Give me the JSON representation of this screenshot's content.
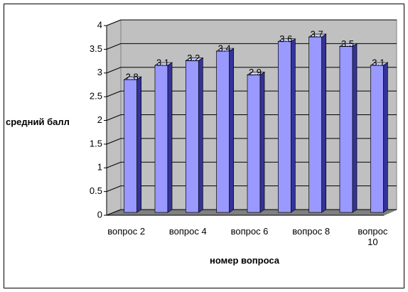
{
  "chart_data": {
    "type": "bar",
    "x_label": "номер вопроса",
    "y_label": "средний балл",
    "categories": [
      "вопрос 2",
      null,
      "вопрос 4",
      null,
      "вопрос 6",
      null,
      "вопрос 8",
      null,
      "вопрос 10"
    ],
    "values": [
      2.8,
      3.1,
      3.2,
      3.4,
      2.9,
      3.6,
      3.7,
      3.5,
      3.1
    ],
    "color": "#9999ff",
    "ylim": [
      0,
      4
    ],
    "yticks": [
      0,
      0.5,
      1,
      1.5,
      2,
      2.5,
      3,
      3.5,
      4
    ],
    "grid": true
  }
}
